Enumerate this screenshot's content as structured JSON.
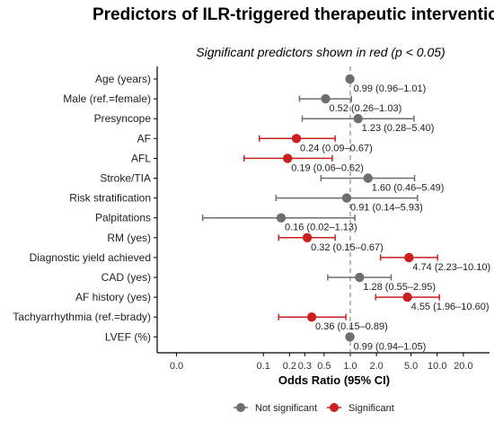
{
  "chart_data": {
    "type": "forest",
    "title": "Predictors of ILR-triggered therapeutic interventions",
    "subtitle": "Significant predictors shown in red (p < 0.05)",
    "xlabel": "Odds Ratio (95% CI)",
    "x_scale": "log",
    "x_ticks": [
      0.01,
      0.1,
      0.2,
      0.3,
      0.5,
      1.0,
      2.0,
      5.0,
      10.0,
      20.0
    ],
    "x_tick_labels": [
      "0.0",
      "0.1",
      "0.2",
      "0.3",
      "0.5",
      "1.0",
      "2.0",
      "5.0",
      "10.0",
      "20.0"
    ],
    "xlim": [
      0.006,
      40
    ],
    "reference_line": 1.0,
    "colors": {
      "not_significant": "#6e6e6e",
      "significant": "#cc2020"
    },
    "legend": {
      "position": "bottom",
      "items": [
        {
          "label": "Not significant",
          "color": "#6e6e6e"
        },
        {
          "label": "Significant",
          "color": "#cc2020"
        }
      ]
    },
    "rows": [
      {
        "label": "Age (years)",
        "or": 0.99,
        "lo": 0.96,
        "hi": 1.01,
        "significant": false,
        "annotation": "0.99 (0.96–1.01)"
      },
      {
        "label": "Male (ref.=female)",
        "or": 0.52,
        "lo": 0.26,
        "hi": 1.03,
        "significant": false,
        "annotation": "0.52 (0.26–1.03)"
      },
      {
        "label": "Presyncope",
        "or": 1.23,
        "lo": 0.28,
        "hi": 5.4,
        "significant": false,
        "annotation": "1.23 (0.28–5.40)"
      },
      {
        "label": "AF",
        "or": 0.24,
        "lo": 0.09,
        "hi": 0.67,
        "significant": true,
        "annotation": "0.24 (0.09–0.67)"
      },
      {
        "label": "AFL",
        "or": 0.19,
        "lo": 0.06,
        "hi": 0.62,
        "significant": true,
        "annotation": "0.19 (0.06–0.62)"
      },
      {
        "label": "Stroke/TIA",
        "or": 1.6,
        "lo": 0.46,
        "hi": 5.49,
        "significant": false,
        "annotation": "1.60 (0.46–5.49)"
      },
      {
        "label": "Risk stratification",
        "or": 0.91,
        "lo": 0.14,
        "hi": 5.93,
        "significant": false,
        "annotation": "0.91 (0.14–5.93)"
      },
      {
        "label": "Palpitations",
        "or": 0.16,
        "lo": 0.02,
        "hi": 1.13,
        "significant": false,
        "annotation": "0.16 (0.02–1.13)"
      },
      {
        "label": "RM (yes)",
        "or": 0.32,
        "lo": 0.15,
        "hi": 0.67,
        "significant": true,
        "annotation": "0.32 (0.15–0.67)"
      },
      {
        "label": "Diagnostic yield achieved",
        "or": 4.74,
        "lo": 2.23,
        "hi": 10.1,
        "significant": true,
        "annotation": "4.74 (2.23–10.10)"
      },
      {
        "label": "CAD (yes)",
        "or": 1.28,
        "lo": 0.55,
        "hi": 2.95,
        "significant": false,
        "annotation": "1.28 (0.55–2.95)"
      },
      {
        "label": "AF history (yes)",
        "or": 4.55,
        "lo": 1.96,
        "hi": 10.6,
        "significant": true,
        "annotation": "4.55 (1.96–10.60)"
      },
      {
        "label": "Tachyarrhythmia (ref.=brady)",
        "or": 0.36,
        "lo": 0.15,
        "hi": 0.89,
        "significant": true,
        "annotation": "0.36 (0.15–0.89)"
      },
      {
        "label": "LVEF (%)",
        "or": 0.99,
        "lo": 0.94,
        "hi": 1.05,
        "significant": false,
        "annotation": "0.99 (0.94–1.05)"
      }
    ]
  }
}
